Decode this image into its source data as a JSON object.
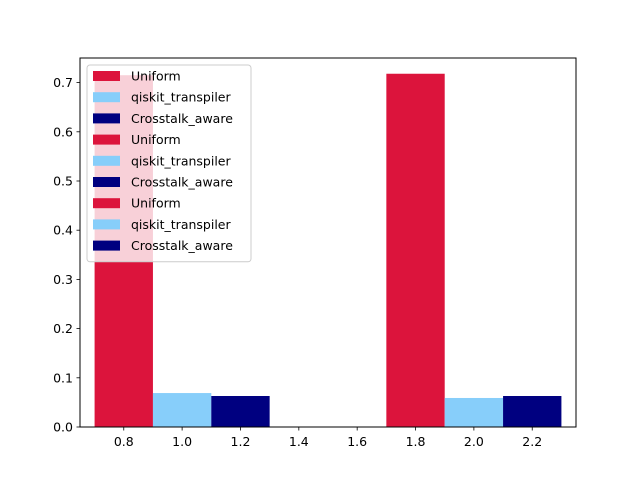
{
  "chart_data": {
    "type": "bar",
    "title": "",
    "xlabel": "",
    "ylabel": "",
    "xlim": [
      0.65,
      2.35
    ],
    "ylim": [
      0,
      0.75
    ],
    "grid": false,
    "legend_placement": "upper left",
    "bar_width": 0.2,
    "series": [
      {
        "name": "Uniform",
        "color": "#DC143C",
        "points": [
          {
            "x": 0.8,
            "y": 0.715
          },
          {
            "x": 1.8,
            "y": 0.718
          }
        ]
      },
      {
        "name": "qiskit_transpiler",
        "color": "#87CEFA",
        "points": [
          {
            "x": 1.0,
            "y": 0.069
          },
          {
            "x": 2.0,
            "y": 0.059
          }
        ]
      },
      {
        "name": "Crosstalk_aware",
        "color": "#000080",
        "points": [
          {
            "x": 1.2,
            "y": 0.063
          },
          {
            "x": 2.2,
            "y": 0.063
          }
        ]
      }
    ],
    "x_ticks": [
      0.8,
      1.0,
      1.2,
      1.4,
      1.6,
      1.8,
      2.0,
      2.2
    ],
    "x_tick_labels": [
      "0.8",
      "1.0",
      "1.2",
      "1.4",
      "1.6",
      "1.8",
      "2.0",
      "2.2"
    ],
    "y_ticks": [
      0.0,
      0.1,
      0.2,
      0.3,
      0.4,
      0.5,
      0.6,
      0.7
    ],
    "y_tick_labels": [
      "0.0",
      "0.1",
      "0.2",
      "0.3",
      "0.4",
      "0.5",
      "0.6",
      "0.7"
    ],
    "legend": [
      {
        "label": "Uniform",
        "color": "#DC143C"
      },
      {
        "label": "qiskit_transpiler",
        "color": "#87CEFA"
      },
      {
        "label": "Crosstalk_aware",
        "color": "#000080"
      },
      {
        "label": "Uniform",
        "color": "#DC143C"
      },
      {
        "label": "qiskit_transpiler",
        "color": "#87CEFA"
      },
      {
        "label": "Crosstalk_aware",
        "color": "#000080"
      },
      {
        "label": "Uniform",
        "color": "#DC143C"
      },
      {
        "label": "qiskit_transpiler",
        "color": "#87CEFA"
      },
      {
        "label": "Crosstalk_aware",
        "color": "#000080"
      }
    ]
  }
}
